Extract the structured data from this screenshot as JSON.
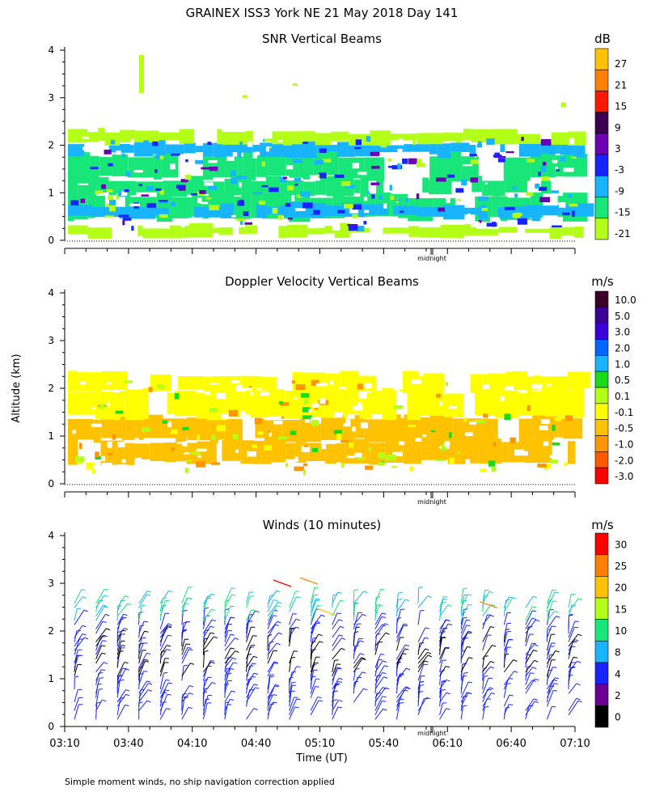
{
  "figure": {
    "title": "GRAINEX ISS3 York NE  21 May 2018 Day 141",
    "ylabel": "Altitude (km)",
    "xlabel": "Time (UT)",
    "footnote": "Simple moment winds, no ship navigation correction applied",
    "midnight_label": "midnight"
  },
  "chart_data": [
    {
      "id": "snr",
      "type": "heatmap",
      "title": "SNR Vertical Beams",
      "ylim": [
        0,
        4
      ],
      "yticks": [
        "0",
        "1",
        "2",
        "3",
        "4"
      ],
      "colorbar": {
        "unit": "dB",
        "labels": [
          "27",
          "21",
          "15",
          "9",
          "3",
          "-3",
          "-9",
          "-15",
          "-21"
        ],
        "colors": [
          "#ffc200",
          "#ff8000",
          "#ff1800",
          "#3c0050",
          "#6c00b4",
          "#1824ff",
          "#18b4ff",
          "#18e678",
          "#b4ff18"
        ]
      },
      "layers": [
        {
          "alt": [
            0.1,
            0.3
          ],
          "color": "#b4ff18"
        },
        {
          "alt": [
            0.45,
            0.95
          ],
          "color": "#18e678"
        },
        {
          "alt": [
            0.5,
            0.75
          ],
          "color": "#18b4ff"
        },
        {
          "alt": [
            0.95,
            1.3
          ],
          "color": "#18e678"
        },
        {
          "alt": [
            1.3,
            1.8
          ],
          "color": "#18e678"
        },
        {
          "alt": [
            1.8,
            2.05
          ],
          "color": "#18b4ff"
        },
        {
          "alt": [
            2.05,
            2.3
          ],
          "color": "#b4ff18"
        }
      ]
    },
    {
      "id": "doppler",
      "type": "heatmap",
      "title": "Doppler Velocity Vertical Beams",
      "ylim": [
        0,
        4
      ],
      "yticks": [
        "0",
        "1",
        "2",
        "3",
        "4"
      ],
      "colorbar": {
        "unit": "m/s",
        "labels": [
          "10.0",
          "5.0",
          "3.0",
          "2.0",
          "1.0",
          "0.5",
          "0.1",
          "-0.1",
          "-0.5",
          "-1.0",
          "-2.0",
          "-3.0"
        ],
        "colors": [
          "#3c0028",
          "#3c0096",
          "#3c00dc",
          "#0064ff",
          "#18b4ff",
          "#18dc18",
          "#b4ff18",
          "#ffff00",
          "#ffc200",
          "#ff9600",
          "#ff5a00",
          "#ff0000"
        ]
      },
      "layers": [
        {
          "alt": [
            0.45,
            0.9
          ],
          "color": "#ffc200"
        },
        {
          "alt": [
            0.9,
            1.4
          ],
          "color": "#ffc200"
        },
        {
          "alt": [
            1.4,
            1.95
          ],
          "color": "#ffff00"
        },
        {
          "alt": [
            1.95,
            2.3
          ],
          "color": "#ffff00"
        }
      ]
    },
    {
      "id": "winds",
      "type": "barbs",
      "title": "Winds (10 minutes)",
      "ylim": [
        0,
        4
      ],
      "yticks": [
        "0",
        "1",
        "2",
        "3",
        "4"
      ],
      "xticks": [
        "03:10",
        "03:40",
        "04:10",
        "04:40",
        "05:10",
        "05:40",
        "06:10",
        "06:40",
        "07:10"
      ],
      "colorbar": {
        "unit": "m/s",
        "labels": [
          "30",
          "25",
          "20",
          "15",
          "10",
          "8",
          "4",
          "2",
          "0"
        ],
        "colors": [
          "#ff0000",
          "#ff8000",
          "#ffc200",
          "#b4ff18",
          "#18e678",
          "#18b4ff",
          "#1824ff",
          "#6c0096",
          "#000000"
        ]
      },
      "profile_count": 24,
      "time_range": [
        "03:10",
        "07:10"
      ]
    }
  ]
}
